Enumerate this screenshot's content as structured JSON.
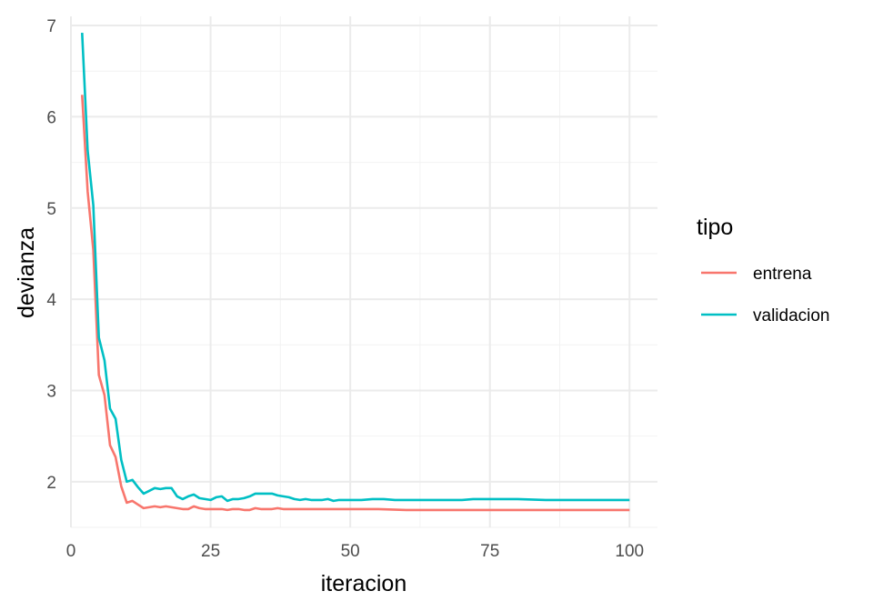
{
  "chart_data": {
    "type": "line",
    "title": "",
    "xlabel": "iteracion",
    "ylabel": "devianza",
    "xlim": [
      0,
      105
    ],
    "ylim": [
      1.5,
      7.1
    ],
    "xticks": [
      0,
      25,
      50,
      75,
      100
    ],
    "yticks": [
      2,
      3,
      4,
      5,
      6,
      7
    ],
    "grid": true,
    "legend": {
      "title": "tipo",
      "position": "right"
    },
    "series": [
      {
        "name": "entrena",
        "color": "#F8766D",
        "x": [
          2,
          3,
          4,
          5,
          6,
          7,
          8,
          9,
          10,
          11,
          12,
          13,
          14,
          15,
          16,
          17,
          18,
          19,
          20,
          21,
          22,
          23,
          24,
          25,
          26,
          27,
          28,
          29,
          30,
          31,
          32,
          33,
          34,
          35,
          36,
          37,
          38,
          39,
          40,
          42,
          45,
          50,
          55,
          60,
          65,
          70,
          75,
          80,
          85,
          90,
          95,
          100
        ],
        "y": [
          6.24,
          5.18,
          4.54,
          3.17,
          2.95,
          2.4,
          2.27,
          1.95,
          1.77,
          1.79,
          1.75,
          1.71,
          1.72,
          1.73,
          1.72,
          1.73,
          1.72,
          1.71,
          1.7,
          1.7,
          1.73,
          1.71,
          1.7,
          1.7,
          1.7,
          1.7,
          1.69,
          1.7,
          1.7,
          1.69,
          1.69,
          1.71,
          1.7,
          1.7,
          1.7,
          1.71,
          1.7,
          1.7,
          1.7,
          1.7,
          1.7,
          1.7,
          1.7,
          1.69,
          1.69,
          1.69,
          1.69,
          1.69,
          1.69,
          1.69,
          1.69,
          1.69
        ]
      },
      {
        "name": "validacion",
        "color": "#00BFC4",
        "x": [
          2,
          3,
          4,
          5,
          6,
          7,
          8,
          9,
          10,
          11,
          12,
          13,
          14,
          15,
          16,
          17,
          18,
          19,
          20,
          21,
          22,
          23,
          24,
          25,
          26,
          27,
          28,
          29,
          30,
          31,
          32,
          33,
          34,
          35,
          36,
          37,
          38,
          39,
          40,
          41,
          42,
          43,
          44,
          45,
          46,
          47,
          48,
          50,
          52,
          54,
          56,
          58,
          60,
          62,
          64,
          66,
          68,
          70,
          72,
          75,
          78,
          80,
          85,
          90,
          95,
          100
        ],
        "y": [
          6.92,
          5.63,
          5.03,
          3.58,
          3.33,
          2.8,
          2.69,
          2.24,
          2.0,
          2.02,
          1.94,
          1.87,
          1.9,
          1.93,
          1.92,
          1.93,
          1.93,
          1.84,
          1.81,
          1.84,
          1.86,
          1.82,
          1.81,
          1.8,
          1.83,
          1.84,
          1.79,
          1.81,
          1.81,
          1.82,
          1.84,
          1.87,
          1.87,
          1.87,
          1.87,
          1.85,
          1.84,
          1.83,
          1.81,
          1.8,
          1.81,
          1.8,
          1.8,
          1.8,
          1.81,
          1.79,
          1.8,
          1.8,
          1.8,
          1.81,
          1.81,
          1.8,
          1.8,
          1.8,
          1.8,
          1.8,
          1.8,
          1.8,
          1.81,
          1.81,
          1.81,
          1.81,
          1.8,
          1.8,
          1.8,
          1.8
        ]
      }
    ]
  }
}
